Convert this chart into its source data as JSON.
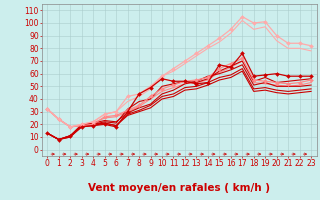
{
  "background_color": "#cceeed",
  "grid_color": "#aacccc",
  "xlabel": "Vent moyen/en rafales ( km/h )",
  "xlabel_color": "#cc0000",
  "xlabel_fontsize": 7.5,
  "yticks": [
    0,
    10,
    20,
    30,
    40,
    50,
    60,
    70,
    80,
    90,
    100,
    110
  ],
  "xticks": [
    0,
    1,
    2,
    3,
    4,
    5,
    6,
    7,
    8,
    9,
    10,
    11,
    12,
    13,
    14,
    15,
    16,
    17,
    18,
    19,
    20,
    21,
    22,
    23
  ],
  "ylim": [
    -5,
    115
  ],
  "xlim": [
    -0.5,
    23.5
  ],
  "tick_color": "#cc0000",
  "tick_fontsize": 5.5,
  "series": [
    {
      "x": [
        0,
        1,
        2,
        3,
        4,
        5,
        6,
        7,
        8,
        9,
        10,
        11,
        12,
        13,
        14,
        15,
        16,
        17,
        18,
        19,
        20,
        21,
        22,
        23
      ],
      "y": [
        13,
        8,
        11,
        18,
        19,
        20,
        18,
        30,
        44,
        49,
        56,
        54,
        54,
        52,
        53,
        67,
        65,
        76,
        58,
        59,
        60,
        58,
        58,
        58
      ],
      "color": "#cc0000",
      "linewidth": 0.9,
      "marker": "D",
      "markersize": 2.0,
      "zorder": 5
    },
    {
      "x": [
        0,
        1,
        2,
        3,
        4,
        5,
        6,
        7,
        8,
        9,
        10,
        11,
        12,
        13,
        14,
        15,
        16,
        17,
        18,
        19,
        20,
        21,
        22,
        23
      ],
      "y": [
        32,
        24,
        18,
        19,
        20,
        26,
        27,
        31,
        35,
        42,
        48,
        51,
        54,
        55,
        57,
        64,
        68,
        72,
        55,
        54,
        53,
        52,
        53,
        55
      ],
      "color": "#ff8888",
      "linewidth": 0.9,
      "marker": "D",
      "markersize": 2.0,
      "zorder": 4
    },
    {
      "x": [
        0,
        1,
        2,
        3,
        4,
        5,
        6,
        7,
        8,
        9,
        10,
        11,
        12,
        13,
        14,
        15,
        16,
        17,
        18,
        19,
        20,
        21,
        22,
        23
      ],
      "y": [
        32,
        24,
        18,
        20,
        22,
        28,
        30,
        42,
        44,
        50,
        58,
        64,
        70,
        76,
        82,
        88,
        95,
        105,
        100,
        101,
        90,
        84,
        84,
        82
      ],
      "color": "#ffaaaa",
      "linewidth": 0.9,
      "marker": "D",
      "markersize": 2.0,
      "zorder": 4
    },
    {
      "x": [
        0,
        1,
        2,
        3,
        4,
        5,
        6,
        7,
        8,
        9,
        10,
        11,
        12,
        13,
        14,
        15,
        16,
        17,
        18,
        19,
        20,
        21,
        22,
        23
      ],
      "y": [
        13,
        8,
        11,
        19,
        20,
        22,
        21,
        32,
        38,
        40,
        50,
        52,
        54,
        53,
        56,
        62,
        66,
        70,
        54,
        57,
        53,
        54,
        55,
        56
      ],
      "color": "#cc0000",
      "linewidth": 0.8,
      "marker": null,
      "markersize": 0,
      "zorder": 3
    },
    {
      "x": [
        0,
        1,
        2,
        3,
        4,
        5,
        6,
        7,
        8,
        9,
        10,
        11,
        12,
        13,
        14,
        15,
        16,
        17,
        18,
        19,
        20,
        21,
        22,
        23
      ],
      "y": [
        13,
        8,
        11,
        20,
        21,
        23,
        22,
        29,
        33,
        36,
        44,
        47,
        52,
        54,
        58,
        60,
        63,
        67,
        51,
        53,
        50,
        50,
        50,
        51
      ],
      "color": "#cc0000",
      "linewidth": 0.8,
      "marker": null,
      "markersize": 0,
      "zorder": 3
    },
    {
      "x": [
        0,
        1,
        2,
        3,
        4,
        5,
        6,
        7,
        8,
        9,
        10,
        11,
        12,
        13,
        14,
        15,
        16,
        17,
        18,
        19,
        20,
        21,
        22,
        23
      ],
      "y": [
        13,
        8,
        10,
        19,
        20,
        21,
        19,
        28,
        31,
        35,
        42,
        44,
        49,
        50,
        53,
        57,
        59,
        64,
        48,
        49,
        47,
        46,
        47,
        48
      ],
      "color": "#cc0000",
      "linewidth": 0.8,
      "marker": null,
      "markersize": 0,
      "zorder": 3
    },
    {
      "x": [
        0,
        1,
        2,
        3,
        4,
        5,
        6,
        7,
        8,
        9,
        10,
        11,
        12,
        13,
        14,
        15,
        16,
        17,
        18,
        19,
        20,
        21,
        22,
        23
      ],
      "y": [
        13,
        8,
        10,
        18,
        19,
        21,
        19,
        27,
        30,
        33,
        40,
        42,
        47,
        48,
        51,
        55,
        57,
        62,
        46,
        47,
        45,
        44,
        45,
        46
      ],
      "color": "#cc0000",
      "linewidth": 0.8,
      "marker": null,
      "markersize": 0,
      "zorder": 3
    },
    {
      "x": [
        0,
        1,
        2,
        3,
        4,
        5,
        6,
        7,
        8,
        9,
        10,
        11,
        12,
        13,
        14,
        15,
        16,
        17,
        18,
        19,
        20,
        21,
        22,
        23
      ],
      "y": [
        32,
        24,
        18,
        19,
        21,
        25,
        26,
        30,
        34,
        40,
        46,
        49,
        52,
        53,
        55,
        61,
        65,
        70,
        53,
        52,
        51,
        50,
        51,
        53
      ],
      "color": "#ff8888",
      "linewidth": 0.8,
      "marker": null,
      "markersize": 0,
      "zorder": 2
    },
    {
      "x": [
        0,
        1,
        2,
        3,
        4,
        5,
        6,
        7,
        8,
        9,
        10,
        11,
        12,
        13,
        14,
        15,
        16,
        17,
        18,
        19,
        20,
        21,
        22,
        23
      ],
      "y": [
        32,
        24,
        18,
        20,
        22,
        28,
        30,
        38,
        42,
        48,
        58,
        62,
        68,
        74,
        80,
        85,
        92,
        102,
        95,
        97,
        86,
        80,
        80,
        78
      ],
      "color": "#ffaaaa",
      "linewidth": 0.8,
      "marker": null,
      "markersize": 0,
      "zorder": 2
    }
  ],
  "arrow_color": "#cc0000"
}
